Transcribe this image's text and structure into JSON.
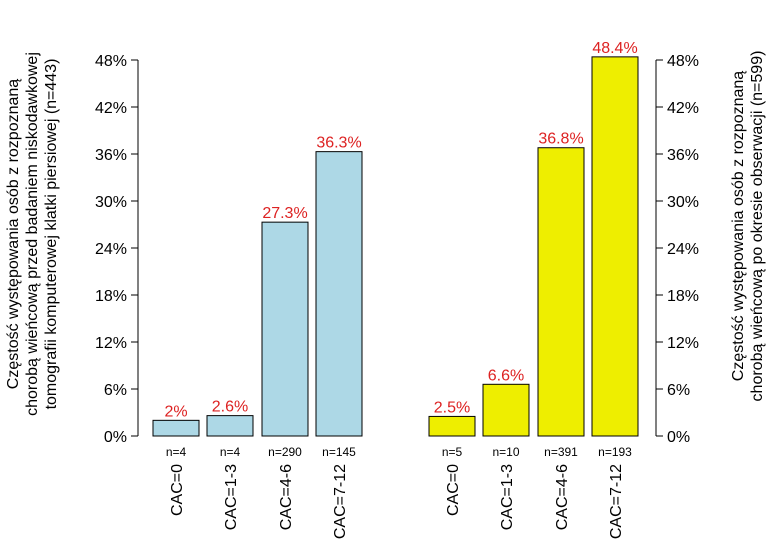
{
  "chart_data": {
    "type": "bar",
    "ylim": [
      0,
      48
    ],
    "y_ticks": [
      "0%",
      "6%",
      "12%",
      "18%",
      "24%",
      "30%",
      "36%",
      "42%",
      "48%"
    ],
    "grid": false,
    "colors": {
      "left": "#add8e6",
      "right": "#eeee00",
      "data_label": "#dd2222"
    },
    "left_axis_title": [
      "Częstość występowania osób z rozpoznaną",
      "chorobą wieńcową przed badaniem niskodawkowej",
      "tomografii komputerowej klatki piersiowej (n=443)"
    ],
    "right_axis_title": [
      "Częstość występowania osób z rozpoznaną",
      "chorobą wieńcową po okresie obserwacji (n=599)"
    ],
    "groups": [
      {
        "categories": [
          "CAC=0",
          "CAC=1-3",
          "CAC=4-6",
          "CAC=7-12"
        ],
        "n": [
          "n=4",
          "n=4",
          "n=290",
          "n=145"
        ],
        "values": [
          2,
          2.6,
          27.3,
          36.3
        ],
        "value_labels": [
          "2%",
          "2.6%",
          "27.3%",
          "36.3%"
        ]
      },
      {
        "categories": [
          "CAC=0",
          "CAC=1-3",
          "CAC=4-6",
          "CAC=7-12"
        ],
        "n": [
          "n=5",
          "n=10",
          "n=391",
          "n=193"
        ],
        "values": [
          2.5,
          6.6,
          36.8,
          48.4
        ],
        "value_labels": [
          "2.5%",
          "6.6%",
          "36.8%",
          "48.4%"
        ]
      }
    ]
  }
}
